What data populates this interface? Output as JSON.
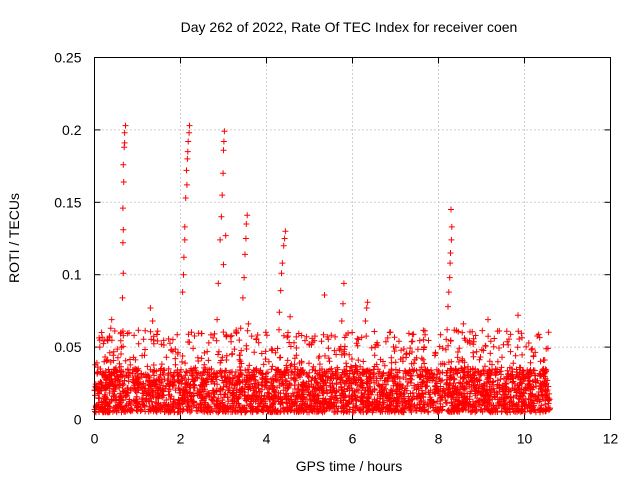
{
  "chart_data": {
    "type": "scatter",
    "title": "Day 262 of 2022, Rate Of TEC Index for receiver coen",
    "xlabel": "GPS time / hours",
    "ylabel": "ROTI / TECUs",
    "xlim": [
      0,
      12
    ],
    "ylim": [
      0,
      0.25
    ],
    "xticks": [
      0,
      2,
      4,
      6,
      8,
      10,
      12
    ],
    "xtick_labels": [
      "0",
      "2",
      "4",
      "6",
      "8",
      "10",
      "12"
    ],
    "yticks": [
      0,
      0.05,
      0.1,
      0.15,
      0.2,
      0.25
    ],
    "ytick_labels": [
      "0",
      "0.05",
      "0.1",
      "0.15",
      "0.2",
      "0.25"
    ],
    "grid": true,
    "marker": "+",
    "color": "#ff0000",
    "series": [
      {
        "name": "ROTI",
        "peaks": [
          {
            "x": 0.65,
            "y": 0.084
          },
          {
            "x": 0.67,
            "y": 0.101
          },
          {
            "x": 0.66,
            "y": 0.122
          },
          {
            "x": 0.67,
            "y": 0.131
          },
          {
            "x": 0.66,
            "y": 0.146
          },
          {
            "x": 0.68,
            "y": 0.164
          },
          {
            "x": 0.67,
            "y": 0.176
          },
          {
            "x": 0.69,
            "y": 0.188
          },
          {
            "x": 0.7,
            "y": 0.191
          },
          {
            "x": 0.7,
            "y": 0.198
          },
          {
            "x": 0.72,
            "y": 0.203
          },
          {
            "x": 2.05,
            "y": 0.088
          },
          {
            "x": 2.07,
            "y": 0.1
          },
          {
            "x": 2.08,
            "y": 0.112
          },
          {
            "x": 2.1,
            "y": 0.124
          },
          {
            "x": 2.1,
            "y": 0.133
          },
          {
            "x": 2.12,
            "y": 0.153
          },
          {
            "x": 2.15,
            "y": 0.162
          },
          {
            "x": 2.14,
            "y": 0.172
          },
          {
            "x": 2.16,
            "y": 0.18
          },
          {
            "x": 2.17,
            "y": 0.185
          },
          {
            "x": 2.18,
            "y": 0.192
          },
          {
            "x": 2.2,
            "y": 0.198
          },
          {
            "x": 2.21,
            "y": 0.203
          },
          {
            "x": 2.85,
            "y": 0.069
          },
          {
            "x": 2.88,
            "y": 0.094
          },
          {
            "x": 2.92,
            "y": 0.124
          },
          {
            "x": 2.95,
            "y": 0.14
          },
          {
            "x": 2.97,
            "y": 0.155
          },
          {
            "x": 2.99,
            "y": 0.17
          },
          {
            "x": 3.0,
            "y": 0.186
          },
          {
            "x": 3.01,
            "y": 0.192
          },
          {
            "x": 3.02,
            "y": 0.199
          },
          {
            "x": 3.0,
            "y": 0.107
          },
          {
            "x": 3.05,
            "y": 0.127
          },
          {
            "x": 3.4,
            "y": 0.063
          },
          {
            "x": 3.45,
            "y": 0.084
          },
          {
            "x": 3.48,
            "y": 0.098
          },
          {
            "x": 3.5,
            "y": 0.114
          },
          {
            "x": 3.52,
            "y": 0.125
          },
          {
            "x": 3.53,
            "y": 0.135
          },
          {
            "x": 3.55,
            "y": 0.141
          },
          {
            "x": 3.58,
            "y": 0.066
          },
          {
            "x": 4.3,
            "y": 0.074
          },
          {
            "x": 4.33,
            "y": 0.089
          },
          {
            "x": 4.35,
            "y": 0.101
          },
          {
            "x": 4.37,
            "y": 0.108
          },
          {
            "x": 4.4,
            "y": 0.12
          },
          {
            "x": 4.42,
            "y": 0.125
          },
          {
            "x": 4.44,
            "y": 0.13
          },
          {
            "x": 4.5,
            "y": 0.06
          },
          {
            "x": 4.55,
            "y": 0.071
          },
          {
            "x": 5.35,
            "y": 0.086
          },
          {
            "x": 5.75,
            "y": 0.068
          },
          {
            "x": 5.78,
            "y": 0.08
          },
          {
            "x": 5.8,
            "y": 0.094
          },
          {
            "x": 6.3,
            "y": 0.068
          },
          {
            "x": 6.33,
            "y": 0.077
          },
          {
            "x": 6.35,
            "y": 0.081
          },
          {
            "x": 8.2,
            "y": 0.062
          },
          {
            "x": 8.22,
            "y": 0.078
          },
          {
            "x": 8.24,
            "y": 0.088
          },
          {
            "x": 8.26,
            "y": 0.098
          },
          {
            "x": 8.27,
            "y": 0.108
          },
          {
            "x": 8.28,
            "y": 0.115
          },
          {
            "x": 8.3,
            "y": 0.124
          },
          {
            "x": 8.31,
            "y": 0.133
          },
          {
            "x": 8.29,
            "y": 0.145
          },
          {
            "x": 8.55,
            "y": 0.06
          },
          {
            "x": 8.58,
            "y": 0.066
          },
          {
            "x": 9.15,
            "y": 0.069
          },
          {
            "x": 9.85,
            "y": 0.072
          },
          {
            "x": 1.3,
            "y": 0.077
          },
          {
            "x": 1.35,
            "y": 0.068
          },
          {
            "x": 0.4,
            "y": 0.069
          },
          {
            "x": 0.38,
            "y": 0.063
          }
        ],
        "background": {
          "x_range": [
            0.0,
            10.6
          ],
          "points_per_hour": 320,
          "base_y_range": [
            0.005,
            0.035
          ],
          "spike_y_max": 0.062
        }
      }
    ]
  }
}
